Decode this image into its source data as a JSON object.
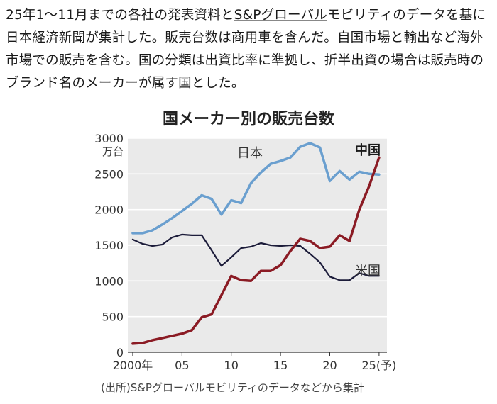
{
  "intro": {
    "part1": "25年1～11月までの各社の発表資料と",
    "link": "S&Pグローバル",
    "part2": "モビリティのデータを基に日本経済新聞が集計した。販売台数は商用車を含んだ。自国市場と輸出など海外市場での販売を含む。国の分類は出資比率に準拠し、折半出資の場合は販売時のブランド名のメーカーが属す国とした。"
  },
  "source": "(出所)S&Pグローバルモビリティのデータなどから集計",
  "watermark": "",
  "chart_data": {
    "type": "line",
    "title": "国メーカー別の販売台数",
    "ylabel": "万台",
    "ylim": [
      0,
      3000
    ],
    "yticks": [
      "0",
      "500",
      "1000",
      "1500",
      "2000",
      "2500",
      "3000"
    ],
    "xticks": [
      "2000年",
      "05",
      "10",
      "15",
      "20",
      "25(予)"
    ],
    "grid": true,
    "x": [
      2000,
      2001,
      2002,
      2003,
      2004,
      2005,
      2006,
      2007,
      2008,
      2009,
      2010,
      2011,
      2012,
      2013,
      2014,
      2015,
      2016,
      2017,
      2018,
      2019,
      2020,
      2021,
      2022,
      2023,
      2024,
      2025
    ],
    "series": [
      {
        "name": "日本",
        "color": "#6a9fcf",
        "values": [
          1670,
          1670,
          1710,
          1790,
          1880,
          1980,
          2080,
          2200,
          2150,
          1930,
          2130,
          2090,
          2370,
          2520,
          2640,
          2680,
          2730,
          2880,
          2930,
          2870,
          2400,
          2540,
          2420,
          2530,
          2500,
          2490
        ]
      },
      {
        "name": "米国",
        "color": "#1c1c3a",
        "values": [
          1580,
          1520,
          1490,
          1510,
          1610,
          1650,
          1640,
          1640,
          1430,
          1210,
          1330,
          1460,
          1480,
          1530,
          1500,
          1490,
          1500,
          1490,
          1380,
          1260,
          1060,
          1010,
          1010,
          1110,
          1070,
          1070
        ]
      },
      {
        "name": "中国",
        "color": "#8b1b24",
        "values": [
          120,
          130,
          170,
          200,
          230,
          260,
          310,
          490,
          530,
          800,
          1070,
          1010,
          1000,
          1140,
          1140,
          1220,
          1420,
          1590,
          1560,
          1460,
          1480,
          1640,
          1560,
          2000,
          2330,
          2730
        ]
      }
    ]
  }
}
